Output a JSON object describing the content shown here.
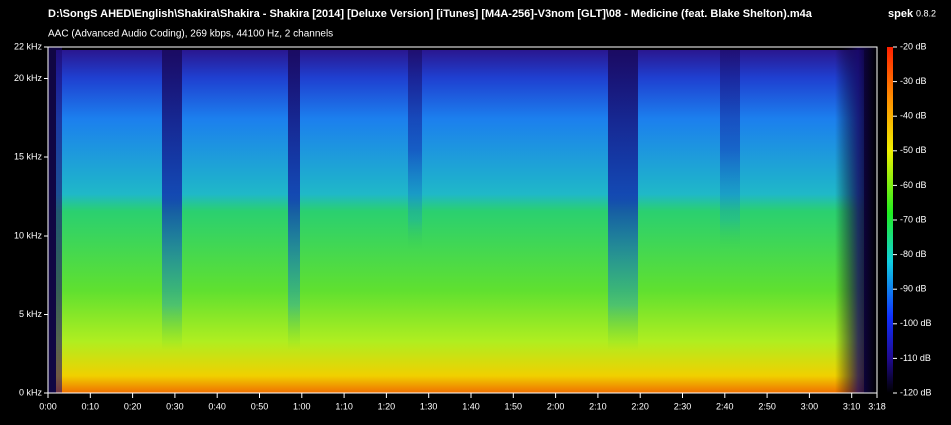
{
  "header": {
    "title": "D:\\SongS AHED\\English\\Shakira\\Shakira - Shakira [2014] [Deluxe Version] [iTunes] [M4A-256]-V3nom [GLT]\\08 - Medicine (feat. Blake Shelton).m4a",
    "subtitle": "AAC (Advanced Audio Coding), 269 kbps, 44100 Hz, 2 channels",
    "app": "spek",
    "version": "0.8.2"
  },
  "frequency_axis": {
    "labels": [
      "22 kHz",
      "20 kHz",
      "15 kHz",
      "10 kHz",
      "5 kHz",
      "0 kHz"
    ]
  },
  "time_axis": {
    "labels": [
      "0:00",
      "0:10",
      "0:20",
      "0:30",
      "0:40",
      "0:50",
      "1:00",
      "1:10",
      "1:20",
      "1:30",
      "1:40",
      "1:50",
      "2:00",
      "2:10",
      "2:20",
      "2:30",
      "2:40",
      "2:50",
      "3:00",
      "3:10",
      "3:18"
    ]
  },
  "color_scale": {
    "labels": [
      "-20 dB",
      "-30 dB",
      "-40 dB",
      "-50 dB",
      "-60 dB",
      "-70 dB",
      "-80 dB",
      "-90 dB",
      "-100 dB",
      "-110 dB",
      "-120 dB"
    ]
  }
}
